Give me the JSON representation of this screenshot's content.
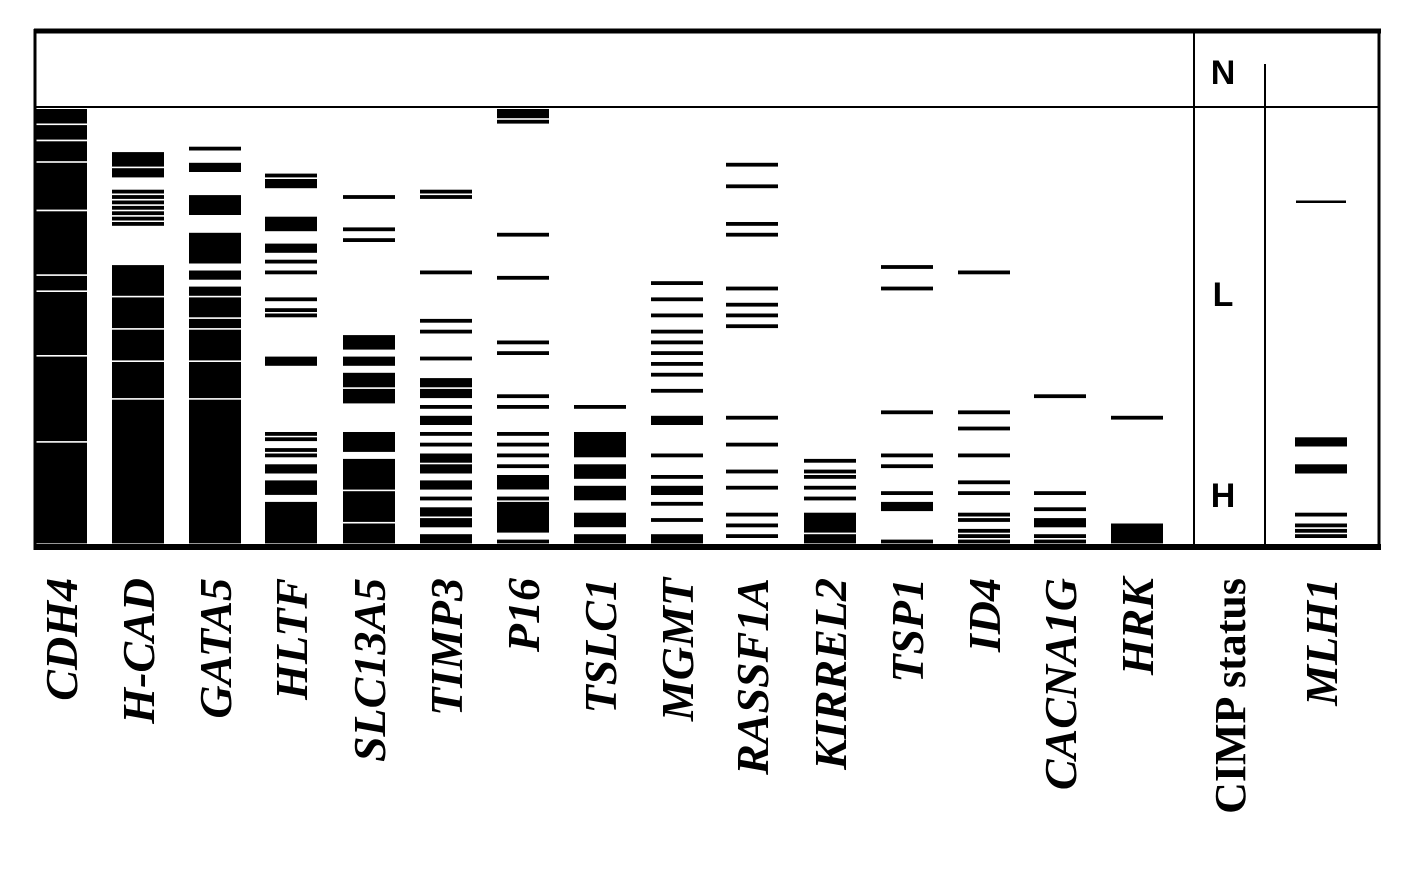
{
  "chart_data": {
    "type": "heatmap",
    "columns": [
      {
        "label": "CDH4",
        "ranges": [
          [
            0,
            2
          ],
          [
            3,
            5
          ],
          [
            6,
            9
          ],
          [
            10,
            18
          ],
          [
            19,
            30
          ],
          [
            31,
            33
          ],
          [
            34,
            45
          ],
          [
            46,
            61
          ],
          [
            62,
            80
          ]
        ]
      },
      {
        "label": "H-CAD",
        "ranges": [
          [
            8,
            10
          ],
          [
            11,
            12
          ],
          [
            15,
            15
          ],
          [
            16,
            16
          ],
          [
            17,
            17
          ],
          [
            18,
            18
          ],
          [
            19,
            19
          ],
          [
            20,
            20
          ],
          [
            21,
            21
          ],
          [
            29,
            34
          ],
          [
            35,
            40
          ],
          [
            41,
            46
          ],
          [
            47,
            53
          ],
          [
            54,
            80
          ]
        ]
      },
      {
        "label": "GATA5",
        "ranges": [
          [
            7,
            7
          ],
          [
            10,
            11
          ],
          [
            16,
            19
          ],
          [
            23,
            28
          ],
          [
            30,
            31
          ],
          [
            33,
            34
          ],
          [
            35,
            38
          ],
          [
            39,
            40
          ],
          [
            41,
            46
          ],
          [
            47,
            53
          ],
          [
            54,
            80
          ]
        ]
      },
      {
        "label": "HLTF",
        "ranges": [
          [
            12,
            12
          ],
          [
            13,
            14
          ],
          [
            20,
            22
          ],
          [
            25,
            26
          ],
          [
            28,
            28
          ],
          [
            30,
            30
          ],
          [
            35,
            35
          ],
          [
            37,
            37
          ],
          [
            38,
            38
          ],
          [
            46,
            47
          ],
          [
            60,
            60
          ],
          [
            61,
            61
          ],
          [
            63,
            63
          ],
          [
            64,
            64
          ],
          [
            66,
            67
          ],
          [
            69,
            71
          ],
          [
            73,
            80
          ]
        ]
      },
      {
        "label": "SLC13A5",
        "ranges": [
          [
            16,
            16
          ],
          [
            22,
            22
          ],
          [
            24,
            24
          ],
          [
            42,
            44
          ],
          [
            46,
            47
          ],
          [
            49,
            51
          ],
          [
            52,
            54
          ],
          [
            60,
            63
          ],
          [
            65,
            70
          ],
          [
            71,
            76
          ],
          [
            77,
            80
          ]
        ]
      },
      {
        "label": "TIMP3",
        "ranges": [
          [
            15,
            15
          ],
          [
            16,
            16
          ],
          [
            30,
            30
          ],
          [
            39,
            39
          ],
          [
            41,
            41
          ],
          [
            46,
            46
          ],
          [
            50,
            51
          ],
          [
            52,
            53
          ],
          [
            55,
            55
          ],
          [
            57,
            58
          ],
          [
            60,
            60
          ],
          [
            62,
            62
          ],
          [
            64,
            65
          ],
          [
            66,
            67
          ],
          [
            69,
            70
          ],
          [
            72,
            72
          ],
          [
            74,
            75
          ],
          [
            76,
            77
          ],
          [
            79,
            80
          ]
        ]
      },
      {
        "label": "P16",
        "ranges": [
          [
            0,
            1
          ],
          [
            2,
            2
          ],
          [
            23,
            23
          ],
          [
            31,
            31
          ],
          [
            43,
            43
          ],
          [
            45,
            45
          ],
          [
            53,
            53
          ],
          [
            55,
            55
          ],
          [
            60,
            60
          ],
          [
            62,
            62
          ],
          [
            64,
            64
          ],
          [
            66,
            66
          ],
          [
            68,
            70
          ],
          [
            72,
            72
          ],
          [
            73,
            78
          ],
          [
            80,
            80
          ]
        ]
      },
      {
        "label": "TSLC1",
        "ranges": [
          [
            55,
            55
          ],
          [
            60,
            64
          ],
          [
            66,
            68
          ],
          [
            70,
            72
          ],
          [
            75,
            77
          ],
          [
            79,
            80
          ]
        ]
      },
      {
        "label": "MGMT",
        "ranges": [
          [
            32,
            32
          ],
          [
            35,
            35
          ],
          [
            38,
            38
          ],
          [
            41,
            41
          ],
          [
            43,
            43
          ],
          [
            45,
            45
          ],
          [
            47,
            47
          ],
          [
            49,
            49
          ],
          [
            52,
            52
          ],
          [
            57,
            58
          ],
          [
            64,
            64
          ],
          [
            68,
            68
          ],
          [
            70,
            71
          ],
          [
            73,
            73
          ],
          [
            76,
            76
          ],
          [
            79,
            80
          ]
        ]
      },
      {
        "label": "RASSF1A",
        "ranges": [
          [
            10,
            10
          ],
          [
            14,
            14
          ],
          [
            21,
            21
          ],
          [
            23,
            23
          ],
          [
            33,
            33
          ],
          [
            36,
            36
          ],
          [
            38,
            38
          ],
          [
            40,
            40
          ],
          [
            57,
            57
          ],
          [
            62,
            62
          ],
          [
            67,
            67
          ],
          [
            70,
            70
          ],
          [
            75,
            75
          ],
          [
            77,
            77
          ],
          [
            79,
            79
          ]
        ]
      },
      {
        "label": "KIRREL2",
        "ranges": [
          [
            65,
            65
          ],
          [
            67,
            67
          ],
          [
            68,
            68
          ],
          [
            70,
            70
          ],
          [
            72,
            72
          ],
          [
            75,
            78
          ],
          [
            79,
            80
          ]
        ]
      },
      {
        "label": "TSP1",
        "ranges": [
          [
            29,
            29
          ],
          [
            33,
            33
          ],
          [
            56,
            56
          ],
          [
            64,
            64
          ],
          [
            66,
            66
          ],
          [
            71,
            71
          ],
          [
            73,
            74
          ],
          [
            80,
            80
          ]
        ]
      },
      {
        "label": "ID4",
        "ranges": [
          [
            30,
            30
          ],
          [
            56,
            56
          ],
          [
            59,
            59
          ],
          [
            64,
            64
          ],
          [
            69,
            69
          ],
          [
            71,
            71
          ],
          [
            75,
            75
          ],
          [
            76,
            76
          ],
          [
            78,
            78
          ],
          [
            79,
            79
          ],
          [
            80,
            80
          ]
        ]
      },
      {
        "label": "CACNA1G",
        "ranges": [
          [
            53,
            53
          ],
          [
            71,
            71
          ],
          [
            74,
            74
          ],
          [
            76,
            77
          ],
          [
            79,
            79
          ],
          [
            80,
            80
          ]
        ]
      },
      {
        "label": "HRK",
        "ranges": [
          [
            57,
            57
          ],
          [
            77,
            80
          ]
        ]
      },
      {
        "label": "CIMP status",
        "ranges": []
      },
      {
        "label": "MLH1",
        "ranges": [
          [
            17,
            17
          ],
          [
            61,
            62
          ],
          [
            66,
            67
          ],
          [
            75,
            75
          ],
          [
            77,
            77
          ],
          [
            78,
            78
          ],
          [
            79,
            79
          ]
        ]
      }
    ],
    "rows": 81,
    "status_bands": [
      {
        "label": "N",
        "from": -14,
        "to": -1
      },
      {
        "label": "L",
        "from": 0,
        "to": 53
      },
      {
        "label": "H",
        "from": 54,
        "to": 80
      }
    ],
    "colors": {
      "mark": "#000000",
      "background": "#ffffff"
    }
  }
}
